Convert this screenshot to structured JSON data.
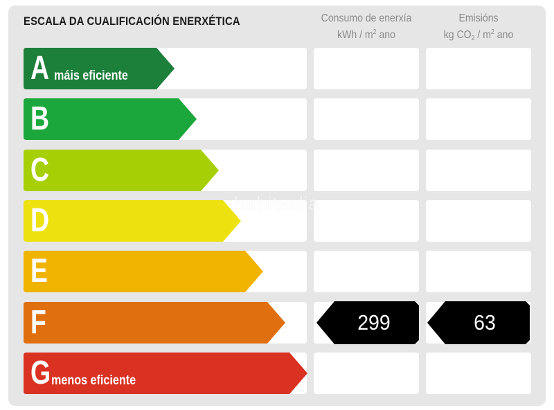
{
  "title": "ESCALA DA CUALIFICACIÓN ENERXÉTICA",
  "energy_header": {
    "line1": "Consumo de enerxía",
    "line2_prefix": "kWh / m",
    "line2_sup": "2",
    "line2_suffix": " ano"
  },
  "emissions_header": {
    "line1": "Emisións",
    "line2_a": "kg CO",
    "line2_sub": "2",
    "line2_b": " / m",
    "line2_sup": "2",
    "line2_c": " ano"
  },
  "classes": [
    {
      "letter": "A",
      "note": "máis eficiente",
      "color": "#1c7f3a"
    },
    {
      "letter": "B",
      "note": "",
      "color": "#1ba73b"
    },
    {
      "letter": "C",
      "note": "",
      "color": "#a6cf06"
    },
    {
      "letter": "D",
      "note": "",
      "color": "#ede20f"
    },
    {
      "letter": "E",
      "note": "",
      "color": "#f0b400"
    },
    {
      "letter": "F",
      "note": "",
      "color": "#e0700f"
    },
    {
      "letter": "G",
      "note": "menos eficiente",
      "color": "#da3222"
    }
  ],
  "rating": {
    "class": "F",
    "energy_consumption": "299",
    "emissions": "63"
  },
  "watermark": "habitaclia"
}
